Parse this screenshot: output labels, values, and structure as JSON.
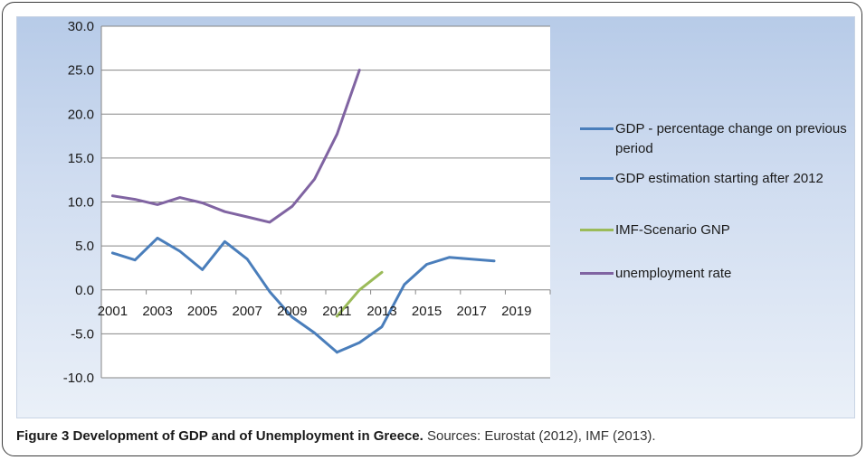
{
  "chart_data": {
    "type": "line",
    "x": [
      2001,
      2002,
      2003,
      2004,
      2005,
      2006,
      2007,
      2008,
      2009,
      2010,
      2011,
      2012,
      2013,
      2014,
      2015,
      2016,
      2017,
      2018
    ],
    "x_tick_labels": [
      "2001",
      "2003",
      "2005",
      "2007",
      "2009",
      "2011",
      "2013",
      "2015",
      "2017",
      "2019"
    ],
    "x_ticks": [
      2001,
      2003,
      2005,
      2007,
      2009,
      2011,
      2013,
      2015,
      2017,
      2019
    ],
    "xlim": [
      2000.5,
      2020.5
    ],
    "ylim": [
      -10,
      30
    ],
    "y_ticks": [
      30,
      25,
      20,
      15,
      10,
      5,
      0,
      -5,
      -10
    ],
    "y_tick_labels": [
      "30.0",
      "25.0",
      "20.0",
      "15.0",
      "10.0",
      "5.0",
      "0.0",
      "-5.0",
      "-10.0"
    ],
    "grid": true,
    "legend_position": "right",
    "series": [
      {
        "name": "GDP - percentage change on previous period",
        "color": "#4a7ebb",
        "points": [
          [
            2001,
            4.2
          ],
          [
            2002,
            3.4
          ],
          [
            2003,
            5.9
          ],
          [
            2004,
            4.4
          ],
          [
            2005,
            2.3
          ],
          [
            2006,
            5.5
          ],
          [
            2007,
            3.5
          ],
          [
            2008,
            -0.2
          ],
          [
            2009,
            -3.1
          ],
          [
            2010,
            -4.9
          ],
          [
            2011,
            -7.1
          ]
        ]
      },
      {
        "name": "GDP estimation starting after 2012",
        "color": "#4a7ebb",
        "points": [
          [
            2011,
            -7.1
          ],
          [
            2012,
            -6.0
          ],
          [
            2013,
            -4.2
          ],
          [
            2014,
            0.6
          ],
          [
            2015,
            2.9
          ],
          [
            2016,
            3.7
          ],
          [
            2017,
            3.5
          ],
          [
            2018,
            3.3
          ]
        ]
      },
      {
        "name": "IMF-Scenario GNP",
        "color": "#9bbb59",
        "points": [
          [
            2011,
            -3.0
          ],
          [
            2012,
            0.0
          ],
          [
            2013,
            2.0
          ]
        ]
      },
      {
        "name": "unemployment rate",
        "color": "#8064a2",
        "points": [
          [
            2001,
            10.7
          ],
          [
            2002,
            10.3
          ],
          [
            2003,
            9.7
          ],
          [
            2004,
            10.5
          ],
          [
            2005,
            9.9
          ],
          [
            2006,
            8.9
          ],
          [
            2007,
            8.3
          ],
          [
            2008,
            7.7
          ],
          [
            2009,
            9.5
          ],
          [
            2010,
            12.6
          ],
          [
            2011,
            17.7
          ],
          [
            2012,
            25.0
          ]
        ]
      }
    ]
  },
  "caption": {
    "title": "Figure 3 Development of GDP and of Unemployment in Greece.",
    "sources": " Sources: Eurostat (2012), IMF (2013)."
  }
}
